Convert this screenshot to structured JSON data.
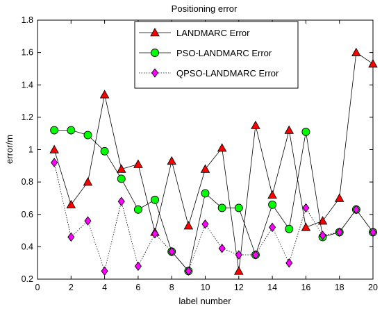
{
  "chart_data": {
    "type": "line",
    "title": "Positioning error",
    "xlabel": "label number",
    "ylabel": "error/m",
    "xlim": [
      0,
      20
    ],
    "ylim": [
      0.2,
      1.8
    ],
    "xticks": [
      0,
      2,
      4,
      6,
      8,
      10,
      12,
      14,
      16,
      18,
      20
    ],
    "yticks": [
      0.2,
      0.4,
      0.6,
      0.8,
      1,
      1.2,
      1.4,
      1.6,
      1.8
    ],
    "grid": false,
    "legend_position": "top-center",
    "x": [
      1,
      2,
      3,
      4,
      5,
      6,
      7,
      8,
      9,
      10,
      11,
      12,
      13,
      14,
      15,
      16,
      17,
      18,
      19,
      20
    ],
    "series": [
      {
        "name": "LANDMARC Error",
        "marker": "triangle",
        "line_style": "solid",
        "marker_color": "#ff0000",
        "values": [
          1.0,
          0.66,
          0.8,
          1.34,
          0.88,
          0.91,
          0.49,
          0.93,
          0.53,
          0.88,
          1.01,
          0.25,
          1.15,
          0.72,
          1.12,
          0.52,
          0.56,
          0.7,
          1.6,
          1.53
        ]
      },
      {
        "name": "PSO-LANDMARC Error",
        "marker": "circle",
        "line_style": "solid",
        "marker_color": "#00ff00",
        "values": [
          1.12,
          1.12,
          1.09,
          0.99,
          0.82,
          0.63,
          0.69,
          0.37,
          0.25,
          0.73,
          0.64,
          0.64,
          0.35,
          0.66,
          0.51,
          1.11,
          0.46,
          0.49,
          0.63,
          0.49
        ]
      },
      {
        "name": "QPSO-LANDMARC Error",
        "marker": "diamond",
        "line_style": "dotted",
        "marker_color": "#ff00ff",
        "values": [
          0.92,
          0.46,
          0.56,
          0.25,
          0.68,
          0.28,
          0.48,
          0.37,
          0.25,
          0.54,
          0.39,
          0.35,
          0.35,
          0.52,
          0.3,
          0.64,
          0.47,
          0.49,
          0.63,
          0.49
        ]
      }
    ]
  }
}
